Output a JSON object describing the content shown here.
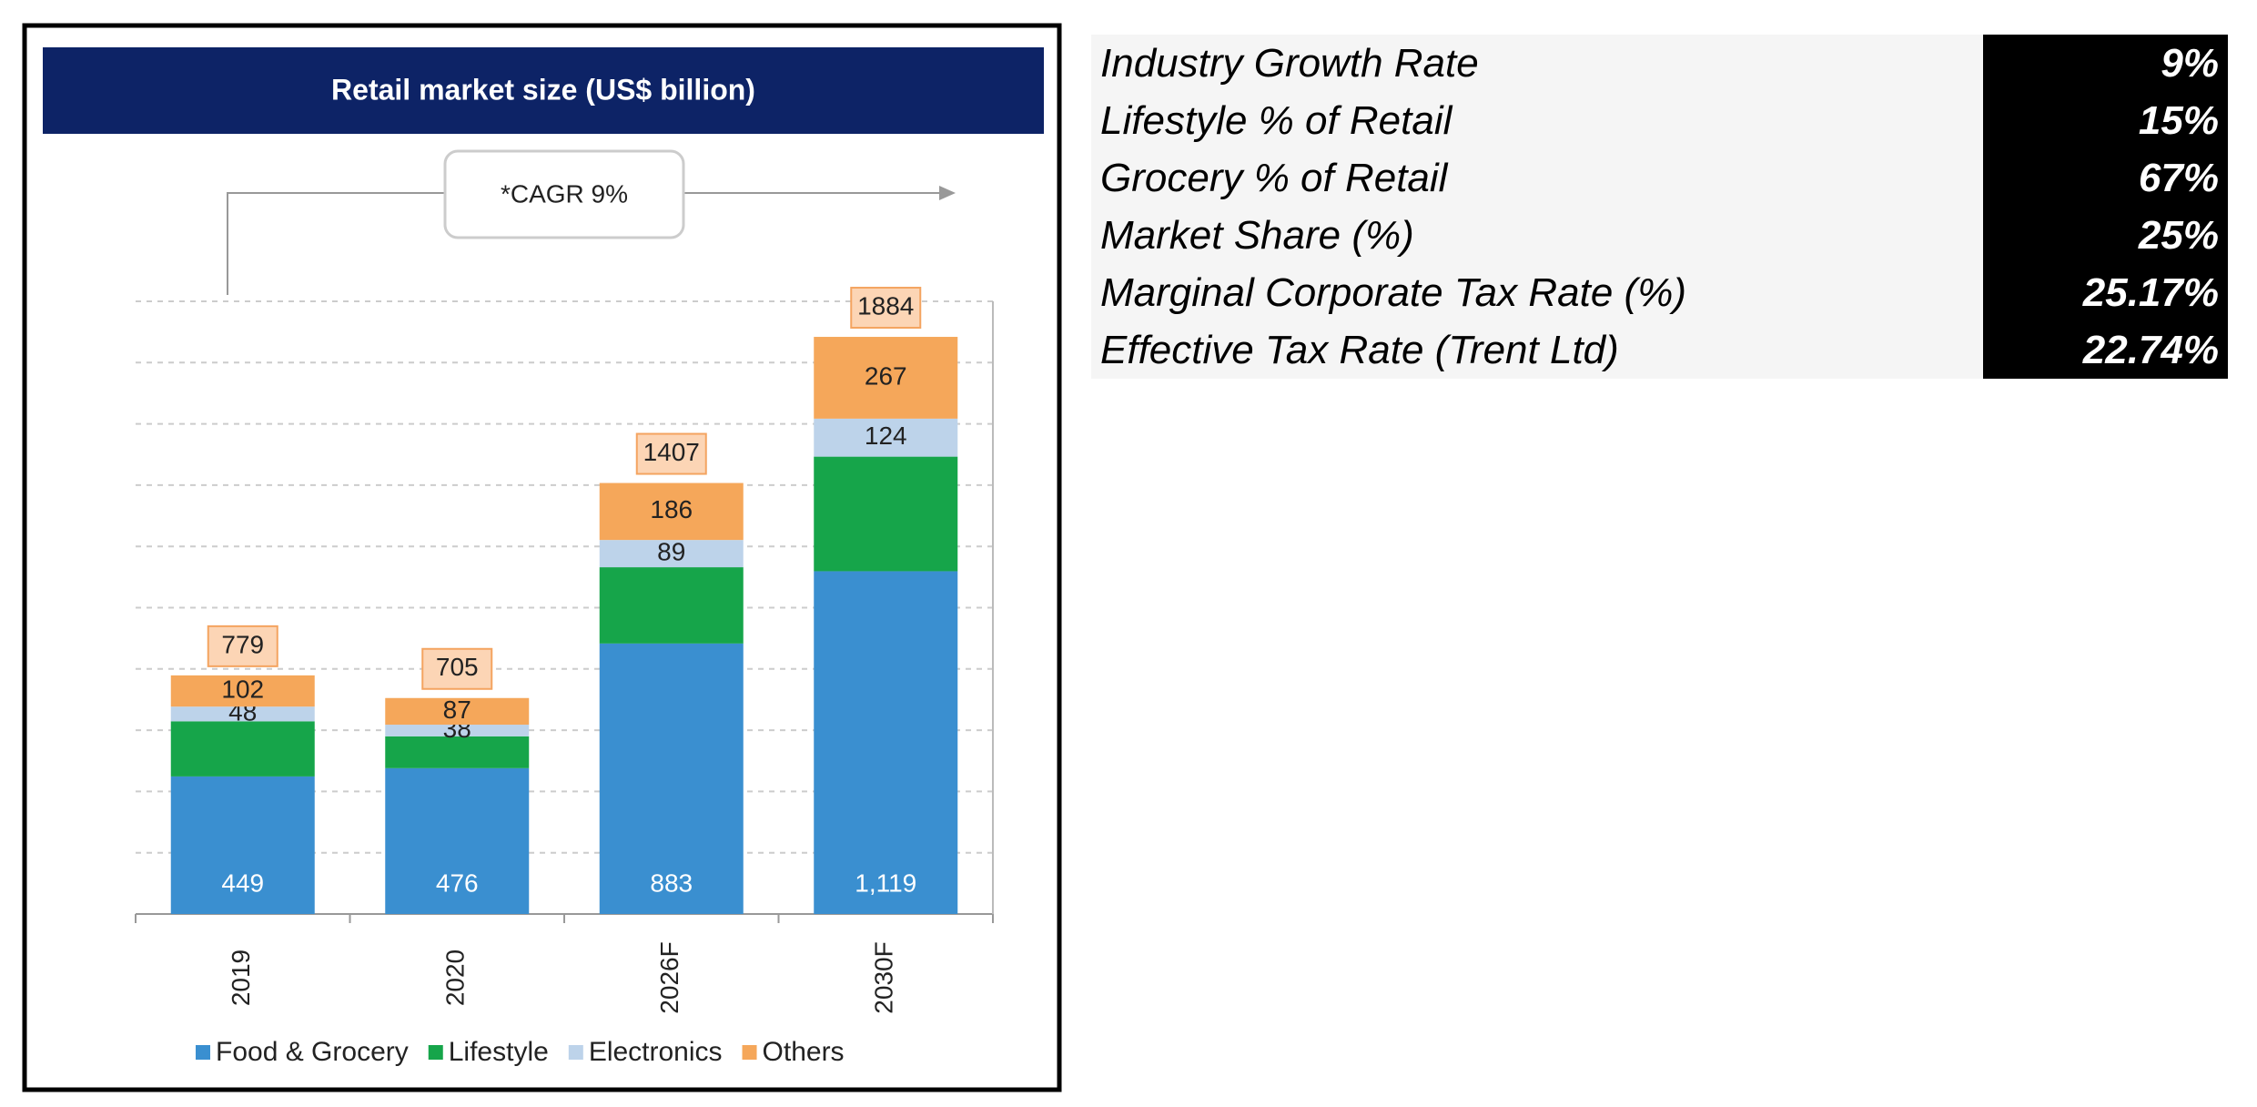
{
  "chart_data": {
    "type": "stacked_bar",
    "title": "Retail market size (US$ billion)",
    "annotation": "*CAGR 9%",
    "categories": [
      "2019",
      "2020",
      "2026F",
      "2030F"
    ],
    "series": [
      {
        "name": "Food & Grocery",
        "color": "#3a8fd0",
        "values": [
          449,
          476,
          883,
          1119
        ],
        "value_labels": [
          "449",
          "476",
          "883",
          "1,119"
        ]
      },
      {
        "name": "Lifestyle",
        "color": "#16a54a",
        "values": [
          180,
          104,
          249,
          374
        ]
      },
      {
        "name": "Electronics",
        "color": "#bdd3ea",
        "values": [
          48,
          38,
          89,
          124
        ]
      },
      {
        "name": "Others",
        "color": "#f5a75a",
        "values": [
          102,
          87,
          186,
          267
        ]
      }
    ],
    "totals": [
      779,
      705,
      1407,
      1884
    ],
    "ylim": [
      0,
      2000
    ],
    "gridlines": [
      200,
      400,
      600,
      800,
      1000,
      1200,
      1400,
      1600,
      1800,
      2000
    ]
  },
  "table": {
    "rows": [
      [
        "Industry Growth Rate",
        "9%"
      ],
      [
        "Lifestyle % of Retail",
        "15%"
      ],
      [
        "Grocery % of Retail",
        "67%"
      ],
      [
        "Market Share (%)",
        "25%"
      ],
      [
        "Marginal Corporate Tax Rate (%)",
        "25.17%"
      ],
      [
        "Effective Tax Rate (Trent Ltd)",
        "22.74%"
      ]
    ]
  }
}
